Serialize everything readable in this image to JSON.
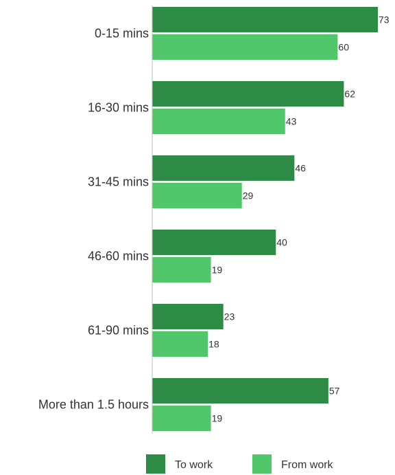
{
  "chart_data": {
    "type": "bar",
    "orientation": "horizontal",
    "categories": [
      "0-15 mins",
      "16-30 mins",
      "31-45 mins",
      "46-60 mins",
      "61-90 mins",
      "More than 1.5 hours"
    ],
    "series": [
      {
        "name": "To work",
        "color": "#2e8b46",
        "values": [
          73,
          62,
          46,
          40,
          23,
          57
        ]
      },
      {
        "name": "From work",
        "color": "#52c66a",
        "values": [
          60,
          43,
          29,
          19,
          18,
          19
        ]
      }
    ],
    "xlim": [
      0,
      73
    ],
    "grid": false,
    "legend": "bottom-center"
  }
}
